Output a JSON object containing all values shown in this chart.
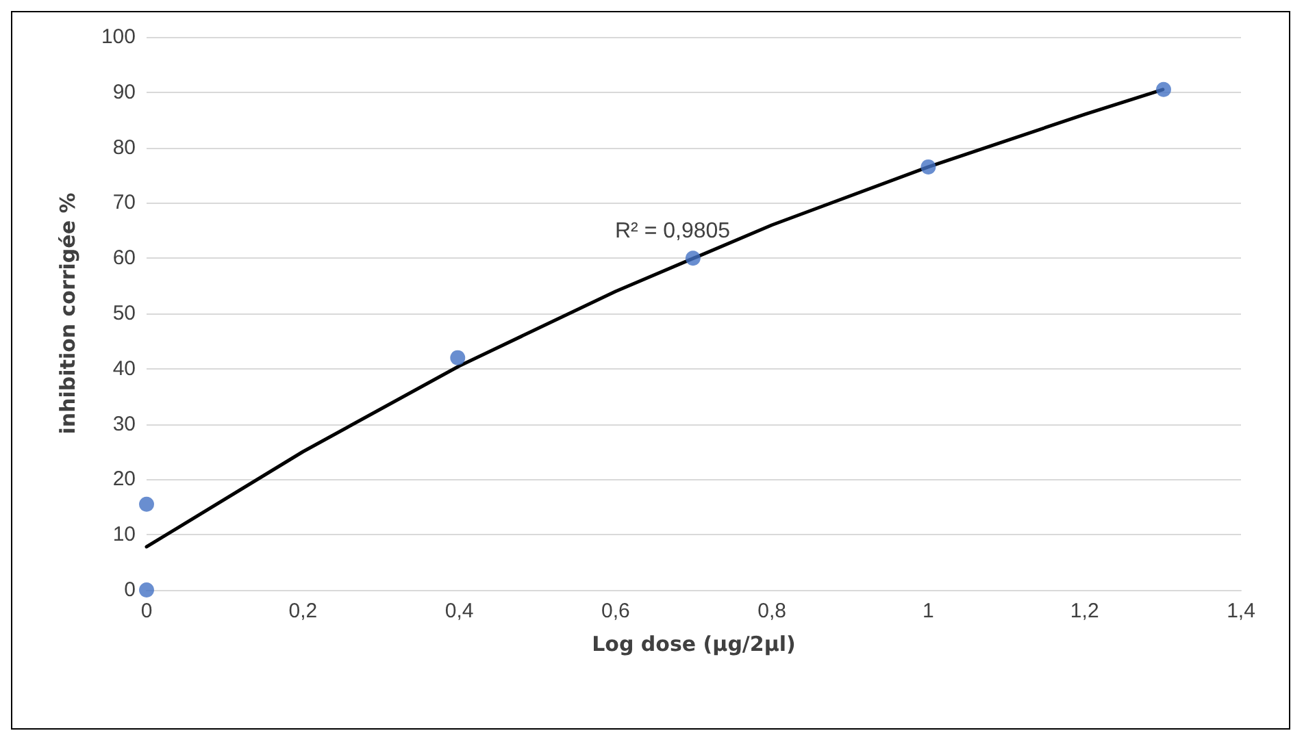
{
  "chart_data": {
    "type": "scatter",
    "xlabel": "Log dose (µg/2µl)",
    "ylabel": "inhibition corrigée %",
    "xlim": [
      0,
      1.4
    ],
    "xticks": [
      0,
      {
        "value": 0.2,
        "label": "0,2"
      },
      {
        "value": 0.4,
        "label": "0,4"
      },
      {
        "value": 0.6,
        "label": "0,6"
      },
      {
        "value": 0.8,
        "label": "0,8"
      },
      1,
      {
        "value": 1.2,
        "label": "1,2"
      },
      {
        "value": 1.4,
        "label": "1,4"
      }
    ],
    "ylim": [
      0,
      100
    ],
    "yticks": [
      0,
      10,
      20,
      30,
      40,
      50,
      60,
      70,
      80,
      90,
      100
    ],
    "grid": "y",
    "marker": "circle",
    "series": [
      {
        "color": "#4472c4",
        "x": [
          0,
          0,
          0.398,
          0.699,
          1,
          1.301
        ],
        "values": [
          15.5,
          0,
          42,
          60,
          76.5,
          90.5
        ]
      },
      {
        "type": "line",
        "color": "#000000",
        "marker": "none",
        "line_style": "solid",
        "x": [
          0,
          0.2,
          0.4,
          0.6,
          0.8,
          1,
          1.2,
          1.3
        ],
        "values": [
          7.8,
          25,
          40.5,
          54,
          66,
          76.5,
          86,
          90.5
        ]
      }
    ],
    "annotations": [
      "R² = 0,9805"
    ]
  }
}
